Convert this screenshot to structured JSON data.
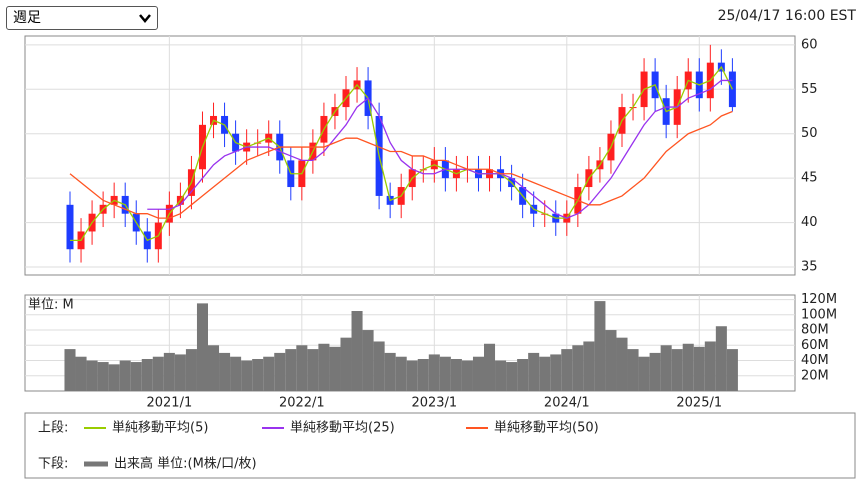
{
  "chart_data": {
    "type": "candlestick",
    "period_select": "週足",
    "timestamp": "25/04/17 16:00 EST",
    "x": [
      "2020/4",
      "2020/5",
      "2020/6",
      "2020/7",
      "2020/8",
      "2020/9",
      "2020/10",
      "2020/11",
      "2020/12",
      "2021/1",
      "2021/2",
      "2021/3",
      "2021/4",
      "2021/5",
      "2021/6",
      "2021/7",
      "2021/8",
      "2021/9",
      "2021/10",
      "2021/11",
      "2021/12",
      "2022/1",
      "2022/2",
      "2022/3",
      "2022/4",
      "2022/5",
      "2022/6",
      "2022/7",
      "2022/8",
      "2022/9",
      "2022/10",
      "2022/11",
      "2022/12",
      "2023/1",
      "2023/2",
      "2023/3",
      "2023/4",
      "2023/5",
      "2023/6",
      "2023/7",
      "2023/8",
      "2023/9",
      "2023/10",
      "2023/11",
      "2023/12",
      "2024/1",
      "2024/2",
      "2024/3",
      "2024/4",
      "2024/5",
      "2024/6",
      "2024/7",
      "2024/8",
      "2024/9",
      "2024/10",
      "2024/11",
      "2024/12",
      "2025/1",
      "2025/2",
      "2025/3",
      "2025/4"
    ],
    "ohlc": {
      "up_color": "#ff2020",
      "down_color": "#1e3cff",
      "open": [
        42,
        37,
        39,
        41,
        42,
        43,
        41,
        39,
        37,
        40,
        42,
        43,
        46,
        51,
        52,
        50,
        48,
        49,
        49,
        50,
        47,
        44,
        47,
        49,
        52,
        53,
        55,
        56,
        52,
        43,
        42,
        44,
        46,
        46,
        47,
        45,
        46,
        46,
        45,
        46,
        45,
        44,
        42,
        41,
        41,
        40,
        41,
        44,
        46,
        47,
        50,
        53,
        53,
        57,
        54,
        51,
        55,
        57,
        54,
        58,
        57
      ],
      "high": [
        43.5,
        40.5,
        42.5,
        43.5,
        44.5,
        44.5,
        42.5,
        40.5,
        41.5,
        43.5,
        44.5,
        47.5,
        52.5,
        53.5,
        53.5,
        51.5,
        50.5,
        50.5,
        51.5,
        51.5,
        48.5,
        48.5,
        50.5,
        53.5,
        54.5,
        56.5,
        57.5,
        57.5,
        53.5,
        44.5,
        45.5,
        47.5,
        47.5,
        48.5,
        48.5,
        47.5,
        47.5,
        47.5,
        47.5,
        47.5,
        46.5,
        45.5,
        43.5,
        42.5,
        42.5,
        42.5,
        45.5,
        47.5,
        48.5,
        51.5,
        54.5,
        54.5,
        58.5,
        58.5,
        55.5,
        56.5,
        58.5,
        58.5,
        60,
        59.5,
        58.5
      ],
      "low": [
        35.5,
        35.5,
        37.5,
        39.5,
        40.5,
        39.5,
        37.5,
        35.5,
        35.5,
        38.5,
        40.5,
        41.5,
        44.5,
        49.5,
        48.5,
        46.5,
        46.5,
        47.5,
        47.5,
        45.5,
        42.5,
        42.5,
        45.5,
        47.5,
        50.5,
        51.5,
        53.5,
        50.5,
        41.5,
        40.5,
        40.5,
        42.5,
        44.5,
        44.5,
        43.5,
        43.5,
        44.5,
        43.5,
        43.5,
        43.5,
        42.5,
        40.5,
        39.5,
        39.5,
        38.5,
        38.5,
        39.5,
        42.5,
        44.5,
        45.5,
        48.5,
        51.5,
        51.5,
        52.5,
        49.5,
        49.5,
        53.5,
        52.5,
        52.5,
        55.5,
        52.5
      ],
      "close": [
        37,
        39,
        41,
        42,
        43,
        41,
        39,
        37,
        40,
        42,
        43,
        46,
        51,
        52,
        50,
        48,
        49,
        49,
        50,
        47,
        44,
        47,
        49,
        52,
        53,
        55,
        56,
        52,
        43,
        42,
        44,
        46,
        46,
        47,
        45,
        46,
        46,
        45,
        46,
        45,
        44,
        42,
        41,
        41,
        40,
        41,
        44,
        46,
        47,
        50,
        53,
        53,
        57,
        54,
        51,
        55,
        57,
        54,
        58,
        57,
        53
      ]
    },
    "series": [
      {
        "name": "単純移動平均(5)",
        "color": "#99cc00",
        "values": [
          38,
          38,
          40,
          41.5,
          42.5,
          42,
          40,
          38,
          38.5,
          41,
          42.5,
          44.5,
          48.5,
          51.5,
          51,
          49,
          48.5,
          49,
          49.5,
          48.5,
          45.5,
          45.5,
          48,
          50.5,
          52.5,
          54,
          55.5,
          54,
          47.5,
          42.5,
          43,
          45,
          46,
          46.5,
          46,
          45.5,
          46,
          45.5,
          45.5,
          45.5,
          44.5,
          43,
          41.5,
          41,
          40.5,
          40.5,
          42.5,
          45,
          46.5,
          48.5,
          51.5,
          53,
          55,
          55.5,
          52.5,
          53,
          56,
          55.5,
          56,
          57.5,
          55
        ]
      },
      {
        "name": "単純移動平均(25)",
        "color": "#9933ee",
        "values": [
          null,
          null,
          null,
          null,
          null,
          null,
          null,
          41.5,
          41.5,
          41.5,
          42,
          43.5,
          45,
          46.5,
          47.5,
          48,
          48.5,
          48.5,
          48.5,
          48,
          47.5,
          47,
          47,
          48,
          49.5,
          51,
          53,
          54,
          52,
          49,
          47,
          46,
          45.5,
          45.5,
          46,
          46,
          46,
          45.5,
          45.5,
          45.5,
          45,
          44,
          43,
          42,
          41,
          40.5,
          41,
          42,
          43.5,
          45,
          47,
          49,
          51,
          52.5,
          53,
          53,
          54,
          54.5,
          55,
          56,
          56
        ]
      },
      {
        "name": "単純移動平均(50)",
        "color": "#ff5522",
        "values": [
          45.5,
          44.5,
          43.5,
          42.5,
          42,
          41.5,
          41,
          41,
          40.5,
          40.5,
          41,
          42,
          43,
          44,
          45,
          46,
          47,
          47.5,
          48,
          48.5,
          48.5,
          48.5,
          48.5,
          48.5,
          49,
          49.5,
          49.5,
          49,
          48.5,
          48,
          48,
          47.5,
          47.5,
          47,
          47,
          46.5,
          46,
          46,
          46,
          45.5,
          45.5,
          45,
          44.5,
          44,
          43.5,
          43,
          42.5,
          42,
          42,
          42.5,
          43,
          44,
          45,
          46.5,
          48,
          49,
          50,
          50.5,
          51,
          52,
          52.5
        ]
      }
    ],
    "ylim": [
      34.1,
      61
    ],
    "yticks": [
      35,
      40,
      45,
      50,
      55,
      60
    ],
    "xticks": [
      "2021/1",
      "2022/1",
      "2023/1",
      "2024/1",
      "2025/1"
    ],
    "grid": true,
    "volume": {
      "name": "出来高 単位:(M株/口/枚)",
      "unit_label": "単位: M",
      "color": "#777777",
      "values": [
        55,
        45,
        40,
        38,
        35,
        40,
        38,
        42,
        45,
        50,
        48,
        55,
        115,
        60,
        50,
        45,
        40,
        42,
        45,
        50,
        55,
        60,
        55,
        62,
        58,
        70,
        105,
        80,
        65,
        50,
        45,
        40,
        42,
        48,
        45,
        42,
        40,
        45,
        62,
        40,
        38,
        42,
        50,
        45,
        48,
        55,
        60,
        65,
        118,
        80,
        70,
        55,
        45,
        50,
        60,
        55,
        62,
        58,
        65,
        85,
        55
      ],
      "ylim": [
        0,
        126
      ],
      "yticks": [
        {
          "value": 20,
          "label": "20M"
        },
        {
          "value": 40,
          "label": "40M"
        },
        {
          "value": 60,
          "label": "60M"
        },
        {
          "value": 80,
          "label": "80M"
        },
        {
          "value": 100,
          "label": "100M"
        },
        {
          "value": 120,
          "label": "120M"
        }
      ]
    },
    "legend": {
      "upper_label": "上段:",
      "lower_label": "下段:"
    }
  }
}
